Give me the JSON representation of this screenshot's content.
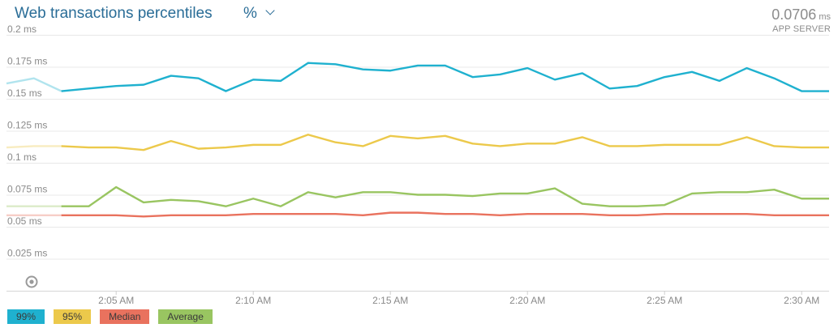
{
  "header": {
    "title": "Web transactions percentiles",
    "unit_selector": "%",
    "summary_value": "0.0706",
    "summary_unit": "ms",
    "summary_label": "APP SERVER"
  },
  "colors": {
    "p99": "#1fb1cf",
    "p95": "#ecc94b",
    "median": "#e9725e",
    "average": "#99c561",
    "grid": "#e8e8e8",
    "axis_text": "#8a8a8a"
  },
  "legend": [
    {
      "label": "99%",
      "color": "#1fb1cf"
    },
    {
      "label": "95%",
      "color": "#ecc94b"
    },
    {
      "label": "Median",
      "color": "#e9725e"
    },
    {
      "label": "Average",
      "color": "#99c561"
    }
  ],
  "chart_data": {
    "type": "line",
    "title": "Web transactions percentiles",
    "y_unit": "ms",
    "ylim": [
      0,
      0.2
    ],
    "yticks": [
      0,
      0.025,
      0.05,
      0.075,
      0.1,
      0.125,
      0.15,
      0.175,
      0.2
    ],
    "ytick_labels": [
      "",
      "0.025 ms",
      "0.05 ms",
      "0.075 ms",
      "0.1 ms",
      "0.125 ms",
      "0.15 ms",
      "0.175 ms",
      "0.2 ms"
    ],
    "xlim": [
      "2:01",
      "2:31"
    ],
    "xticks": [
      "2:05",
      "2:10",
      "2:15",
      "2:20",
      "2:25",
      "2:30"
    ],
    "xtick_labels": [
      "2:05 AM",
      "2:10 AM",
      "2:15 AM",
      "2:20 AM",
      "2:25 AM",
      "2:30 AM"
    ],
    "x": [
      "2:01",
      "2:02",
      "2:03",
      "2:04",
      "2:05",
      "2:06",
      "2:07",
      "2:08",
      "2:09",
      "2:10",
      "2:11",
      "2:12",
      "2:13",
      "2:14",
      "2:15",
      "2:16",
      "2:17",
      "2:18",
      "2:19",
      "2:20",
      "2:21",
      "2:22",
      "2:23",
      "2:24",
      "2:25",
      "2:26",
      "2:27",
      "2:28",
      "2:29",
      "2:30",
      "2:31"
    ],
    "series": [
      {
        "name": "99%",
        "values": [
          0.162,
          0.166,
          0.156,
          0.158,
          0.16,
          0.161,
          0.168,
          0.166,
          0.156,
          0.165,
          0.164,
          0.178,
          0.177,
          0.173,
          0.172,
          0.176,
          0.176,
          0.167,
          0.169,
          0.174,
          0.165,
          0.17,
          0.158,
          0.16,
          0.167,
          0.171,
          0.164,
          0.174,
          0.166,
          0.156,
          0.156
        ]
      },
      {
        "name": "95%",
        "values": [
          0.112,
          0.113,
          0.113,
          0.112,
          0.112,
          0.11,
          0.117,
          0.111,
          0.112,
          0.114,
          0.114,
          0.122,
          0.116,
          0.113,
          0.121,
          0.119,
          0.121,
          0.115,
          0.113,
          0.115,
          0.115,
          0.12,
          0.113,
          0.113,
          0.114,
          0.114,
          0.114,
          0.12,
          0.113,
          0.112,
          0.112
        ]
      },
      {
        "name": "Median",
        "values": [
          0.059,
          0.059,
          0.059,
          0.059,
          0.059,
          0.058,
          0.059,
          0.059,
          0.059,
          0.06,
          0.06,
          0.06,
          0.06,
          0.059,
          0.061,
          0.061,
          0.06,
          0.06,
          0.059,
          0.06,
          0.06,
          0.06,
          0.059,
          0.059,
          0.06,
          0.06,
          0.06,
          0.06,
          0.059,
          0.059,
          0.059
        ]
      },
      {
        "name": "Average",
        "values": [
          0.066,
          0.066,
          0.066,
          0.066,
          0.081,
          0.069,
          0.071,
          0.07,
          0.066,
          0.072,
          0.066,
          0.077,
          0.073,
          0.077,
          0.077,
          0.075,
          0.075,
          0.074,
          0.076,
          0.076,
          0.08,
          0.068,
          0.066,
          0.066,
          0.067,
          0.076,
          0.077,
          0.077,
          0.079,
          0.072,
          0.072
        ]
      }
    ]
  }
}
